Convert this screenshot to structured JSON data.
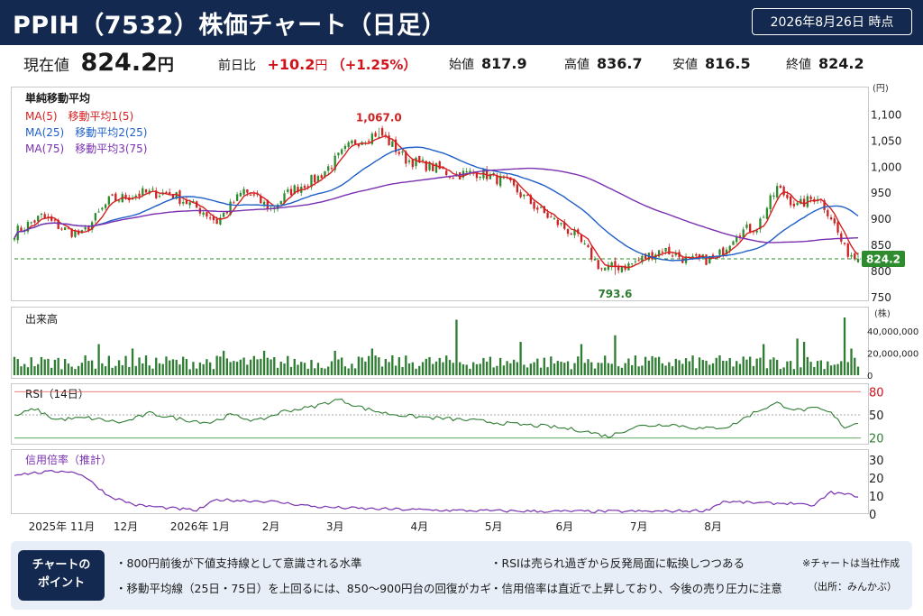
{
  "header": {
    "title": "PPIH（7532）株価チャート（日足）",
    "date": "2026年8月26日 時点"
  },
  "price_bar": {
    "current_label": "現在値",
    "current_value": "824.2",
    "current_unit": "円",
    "change_label": "前日比",
    "change_value": "+10.2",
    "change_unit": "円",
    "change_pct": "（+1.25%）",
    "open_label": "始値",
    "open_value": "817.9",
    "high_label": "高値",
    "high_value": "836.7",
    "low_label": "安値",
    "low_value": "816.5",
    "close_label": "終値",
    "close_value": "824.2"
  },
  "colors": {
    "header_bg": "#14294f",
    "up_candle": "#2e8b2e",
    "down_candle": "#cc2222",
    "ma5": "#d62020",
    "ma25": "#1f5fc8",
    "ma75": "#7a30b0",
    "volume": "#2e7d32",
    "rsi_line": "#2e7d32",
    "margin_line": "#7a30b0",
    "accent_red": "#d0121b"
  },
  "chart_data": [
    {
      "type": "line",
      "name_text": "price_panel",
      "legend_title": "単純移動平均",
      "series": [
        {
          "name": "MA(5)　移動平均1(5)",
          "color": "#d62020"
        },
        {
          "name": "MA(25)　移動平均2(25)",
          "color": "#1f5fc8"
        },
        {
          "name": "MA(75)　移動平均3(75)",
          "color": "#7a30b0"
        }
      ],
      "y_unit": "(円)",
      "ylim": [
        750,
        1130
      ],
      "yticks": [
        "1,100",
        "1,050",
        "1,000",
        "950",
        "900",
        "850",
        "800",
        "750"
      ],
      "ytick_values": [
        1100,
        1050,
        1000,
        950,
        900,
        850,
        800,
        750
      ],
      "price_anchors": [
        [
          0,
          875
        ],
        [
          8,
          905
        ],
        [
          15,
          880
        ],
        [
          20,
          870
        ],
        [
          28,
          935
        ],
        [
          38,
          950
        ],
        [
          46,
          950
        ],
        [
          56,
          915
        ],
        [
          60,
          895
        ],
        [
          68,
          955
        ],
        [
          76,
          920
        ],
        [
          82,
          955
        ],
        [
          90,
          980
        ],
        [
          100,
          1045
        ],
        [
          108,
          1067
        ],
        [
          116,
          1015
        ],
        [
          126,
          995
        ],
        [
          130,
          985
        ],
        [
          138,
          990
        ],
        [
          146,
          970
        ],
        [
          156,
          915
        ],
        [
          166,
          870
        ],
        [
          174,
          805
        ],
        [
          182,
          812
        ],
        [
          192,
          843
        ],
        [
          200,
          820
        ],
        [
          208,
          825
        ],
        [
          214,
          875
        ],
        [
          220,
          885
        ],
        [
          226,
          960
        ],
        [
          232,
          925
        ],
        [
          238,
          945
        ],
        [
          242,
          905
        ],
        [
          246,
          842
        ],
        [
          250,
          824.2
        ]
      ],
      "annotations": [
        {
          "text": "1,067.0",
          "x": 108,
          "y": 1067
        },
        {
          "text": "793.6",
          "x": 178,
          "y": 793.6
        }
      ],
      "current_price_label": "824.2",
      "current_price": 824.2
    },
    {
      "type": "bar",
      "title": "出来高",
      "y_unit": "(株)",
      "yticks": [
        "40,000,000",
        "20,000,000",
        "0"
      ],
      "ytick_values": [
        40000000,
        20000000,
        0
      ],
      "ylim": [
        0,
        52000000
      ],
      "spikes": [
        [
          25,
          28000000
        ],
        [
          35,
          24000000
        ],
        [
          62,
          22000000
        ],
        [
          74,
          22000000
        ],
        [
          95,
          22000000
        ],
        [
          106,
          24000000
        ],
        [
          131,
          50000000
        ],
        [
          150,
          30000000
        ],
        [
          168,
          28000000
        ],
        [
          178,
          36000000
        ],
        [
          222,
          28000000
        ],
        [
          232,
          33000000
        ],
        [
          234,
          30000000
        ],
        [
          246,
          52000000
        ],
        [
          248,
          24000000
        ]
      ],
      "base_volume": 9000000
    },
    {
      "type": "line",
      "title": "RSI（14日）",
      "yticks": [
        "80",
        "50",
        "20"
      ],
      "ytick_values": [
        80,
        50,
        20
      ],
      "ylim": [
        15,
        85
      ],
      "rsi_anchors": [
        [
          0,
          48
        ],
        [
          6,
          58
        ],
        [
          12,
          44
        ],
        [
          22,
          46
        ],
        [
          32,
          40
        ],
        [
          40,
          52
        ],
        [
          50,
          44
        ],
        [
          58,
          40
        ],
        [
          64,
          50
        ],
        [
          72,
          42
        ],
        [
          80,
          55
        ],
        [
          88,
          60
        ],
        [
          96,
          70
        ],
        [
          104,
          58
        ],
        [
          110,
          52
        ],
        [
          118,
          48
        ],
        [
          128,
          45
        ],
        [
          138,
          42
        ],
        [
          148,
          38
        ],
        [
          158,
          35
        ],
        [
          168,
          30
        ],
        [
          176,
          22
        ],
        [
          184,
          35
        ],
        [
          194,
          38
        ],
        [
          204,
          32
        ],
        [
          212,
          35
        ],
        [
          220,
          55
        ],
        [
          226,
          65
        ],
        [
          232,
          56
        ],
        [
          238,
          58
        ],
        [
          242,
          52
        ],
        [
          246,
          34
        ],
        [
          250,
          40
        ]
      ]
    },
    {
      "type": "line",
      "title": "信用倍率（推計）",
      "yticks": [
        "30",
        "20",
        "10",
        "0"
      ],
      "ytick_values": [
        30,
        20,
        10,
        0
      ],
      "ylim": [
        0,
        30
      ],
      "margin_anchors": [
        [
          0,
          22
        ],
        [
          15,
          24
        ],
        [
          20,
          22
        ],
        [
          28,
          10
        ],
        [
          36,
          5
        ],
        [
          48,
          3
        ],
        [
          54,
          2
        ],
        [
          60,
          8
        ],
        [
          76,
          7
        ],
        [
          90,
          4
        ],
        [
          104,
          3
        ],
        [
          130,
          2
        ],
        [
          160,
          1.5
        ],
        [
          190,
          1.5
        ],
        [
          205,
          2
        ],
        [
          210,
          7
        ],
        [
          222,
          6
        ],
        [
          232,
          6
        ],
        [
          236,
          4
        ],
        [
          242,
          12
        ],
        [
          250,
          10
        ]
      ]
    }
  ],
  "x_axis": {
    "ticks": [
      {
        "label": "2025年 11月",
        "i": 14
      },
      {
        "label": "12月",
        "i": 33
      },
      {
        "label": "2026年 1月",
        "i": 55
      },
      {
        "label": "2月",
        "i": 76
      },
      {
        "label": "3月",
        "i": 95
      },
      {
        "label": "4月",
        "i": 120
      },
      {
        "label": "5月",
        "i": 142
      },
      {
        "label": "6月",
        "i": 163
      },
      {
        "label": "7月",
        "i": 185
      },
      {
        "label": "8月",
        "i": 207
      }
    ]
  },
  "footer": {
    "badge_line1": "チャートの",
    "badge_line2": "ポイント",
    "point1": "・800円前後が下値支持線として意識される水準",
    "point2": "・移動平均線（25日・75日）を上回るには、850〜900円台の回復がカギ",
    "point3": "・RSIは売られ過ぎから反発局面に転換しつつある",
    "point4": "・信用倍率は直近で上昇しており、今後の売り圧力に注意",
    "note1": "※チャートは当社作成",
    "note2": "（出所：みんかぶ）"
  }
}
